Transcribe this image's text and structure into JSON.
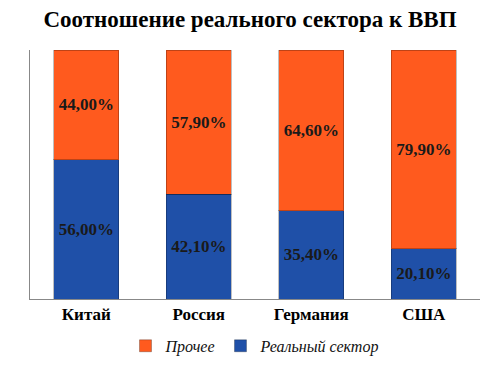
{
  "chart_data": {
    "type": "bar",
    "title": "Соотношение реального сектора к ВВП",
    "categories": [
      "Китай",
      "Россия",
      "Германия",
      "США"
    ],
    "series": [
      {
        "name": "Реальный сектор",
        "color": "#1f50a8",
        "values": [
          56.0,
          42.1,
          35.4,
          20.1
        ],
        "value_labels": [
          "56,00%",
          "42,10%",
          "35,40%",
          "20,10%"
        ]
      },
      {
        "name": "Прочее",
        "color": "#ff5a1e",
        "values": [
          44.0,
          57.9,
          64.6,
          79.9
        ],
        "value_labels": [
          "44,00%",
          "57,90%",
          "64,60%",
          "79,90%"
        ]
      }
    ],
    "ylim": [
      0,
      100
    ],
    "stacked": true,
    "data_labels": true,
    "grid": false,
    "tick_labels": "x",
    "legend": "bottom"
  }
}
